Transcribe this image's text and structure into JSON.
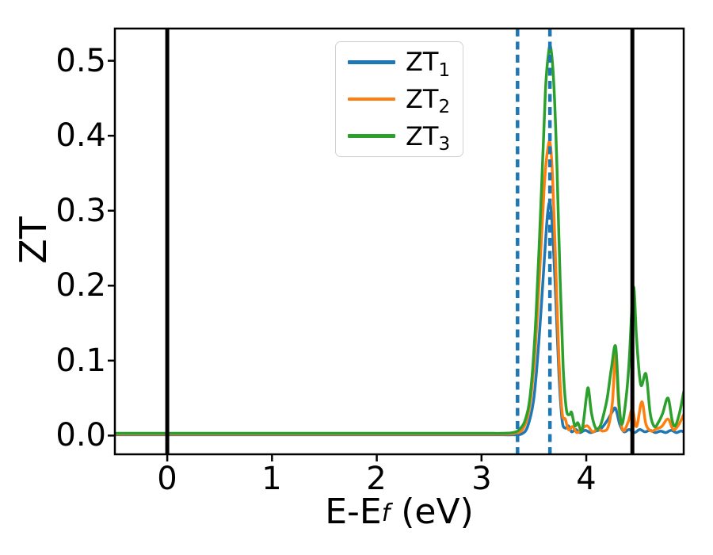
{
  "figure": {
    "background": "#ffffff"
  },
  "chart_data": {
    "type": "line",
    "title": "",
    "ylabel": "ZT",
    "xlabel": {
      "pre": "E-E",
      "sub": "f",
      "post": " (eV)"
    },
    "xlim": [
      -0.5,
      4.93
    ],
    "ylim": [
      -0.025,
      0.543
    ],
    "grid": false,
    "legend_position": "upper left-center",
    "xticks": {
      "values": [
        0,
        1,
        2,
        3,
        4
      ],
      "labels": [
        "0",
        "1",
        "2",
        "3",
        "4"
      ]
    },
    "yticks": {
      "values": [
        0.0,
        0.1,
        0.2,
        0.3,
        0.4,
        0.5
      ],
      "labels": [
        "0.0",
        "0.1",
        "0.2",
        "0.3",
        "0.4",
        "0.5"
      ]
    },
    "vlines": [
      {
        "x": 0.0,
        "color": "#000000",
        "style": "solid",
        "width": 5
      },
      {
        "x": 4.44,
        "color": "#000000",
        "style": "solid",
        "width": 5
      },
      {
        "x": 3.344,
        "color": "#1f77b4",
        "style": "dashed",
        "width": 4.5
      },
      {
        "x": 3.653,
        "color": "#1f77b4",
        "style": "dashed",
        "width": 4.5
      }
    ],
    "series": [
      {
        "name": "ZT1",
        "label_base": "ZT",
        "label_sub": "1",
        "color": "#1f77b4",
        "line_width": 3.5,
        "peak_summary": {
          "main_peak_x": 3.655,
          "main_peak_y": 0.31
        },
        "points": [
          [
            -0.5,
            0.001
          ],
          [
            0.5,
            0.001
          ],
          [
            1.5,
            0.001
          ],
          [
            2.5,
            0.001
          ],
          [
            3.0,
            0.001
          ],
          [
            3.2,
            0.001
          ],
          [
            3.3,
            0.001
          ],
          [
            3.38,
            0.002
          ],
          [
            3.44,
            0.012
          ],
          [
            3.5,
            0.05
          ],
          [
            3.55,
            0.13
          ],
          [
            3.6,
            0.235
          ],
          [
            3.63,
            0.295
          ],
          [
            3.655,
            0.31
          ],
          [
            3.68,
            0.27
          ],
          [
            3.71,
            0.18
          ],
          [
            3.74,
            0.08
          ],
          [
            3.77,
            0.02
          ],
          [
            3.8,
            0.01
          ],
          [
            3.83,
            0.013
          ],
          [
            3.86,
            0.005
          ],
          [
            3.9,
            0.008
          ],
          [
            3.94,
            0.004
          ],
          [
            3.99,
            0.007
          ],
          [
            4.04,
            0.004
          ],
          [
            4.09,
            0.006
          ],
          [
            4.14,
            0.009
          ],
          [
            4.2,
            0.02
          ],
          [
            4.25,
            0.032
          ],
          [
            4.28,
            0.036
          ],
          [
            4.32,
            0.015
          ],
          [
            4.36,
            0.005
          ],
          [
            4.41,
            0.008
          ],
          [
            4.46,
            0.004
          ],
          [
            4.51,
            0.008
          ],
          [
            4.56,
            0.005
          ],
          [
            4.61,
            0.007
          ],
          [
            4.66,
            0.004
          ],
          [
            4.71,
            0.006
          ],
          [
            4.76,
            0.004
          ],
          [
            4.81,
            0.007
          ],
          [
            4.86,
            0.004
          ],
          [
            4.9,
            0.006
          ],
          [
            4.93,
            0.005
          ]
        ]
      },
      {
        "name": "ZT2",
        "label_base": "ZT",
        "label_sub": "2",
        "color": "#ff7f0e",
        "line_width": 3.5,
        "peak_summary": {
          "main_peak_x": 3.655,
          "main_peak_y": 0.39
        },
        "points": [
          [
            -0.5,
            0.002
          ],
          [
            0.5,
            0.002
          ],
          [
            1.5,
            0.002
          ],
          [
            2.5,
            0.002
          ],
          [
            3.0,
            0.002
          ],
          [
            3.2,
            0.002
          ],
          [
            3.32,
            0.003
          ],
          [
            3.4,
            0.01
          ],
          [
            3.46,
            0.04
          ],
          [
            3.51,
            0.11
          ],
          [
            3.56,
            0.23
          ],
          [
            3.6,
            0.335
          ],
          [
            3.63,
            0.38
          ],
          [
            3.655,
            0.39
          ],
          [
            3.68,
            0.34
          ],
          [
            3.71,
            0.22
          ],
          [
            3.74,
            0.1
          ],
          [
            3.77,
            0.03
          ],
          [
            3.8,
            0.022
          ],
          [
            3.83,
            0.008
          ],
          [
            3.87,
            0.012
          ],
          [
            3.91,
            0.004
          ],
          [
            3.96,
            0.009
          ],
          [
            4.01,
            0.013
          ],
          [
            4.06,
            0.005
          ],
          [
            4.11,
            0.009
          ],
          [
            4.16,
            0.006
          ],
          [
            4.21,
            0.012
          ],
          [
            4.25,
            0.045
          ],
          [
            4.28,
            0.108
          ],
          [
            4.31,
            0.04
          ],
          [
            4.35,
            0.007
          ],
          [
            4.4,
            0.018
          ],
          [
            4.44,
            0.035
          ],
          [
            4.48,
            0.012
          ],
          [
            4.53,
            0.045
          ],
          [
            4.57,
            0.015
          ],
          [
            4.62,
            0.006
          ],
          [
            4.67,
            0.009
          ],
          [
            4.72,
            0.012
          ],
          [
            4.78,
            0.022
          ],
          [
            4.83,
            0.008
          ],
          [
            4.88,
            0.014
          ],
          [
            4.93,
            0.028
          ]
        ]
      },
      {
        "name": "ZT3",
        "label_base": "ZT",
        "label_sub": "3",
        "color": "#2ca02c",
        "line_width": 3.5,
        "peak_summary": {
          "main_peak_x": 3.66,
          "main_peak_y": 0.518
        },
        "points": [
          [
            -0.5,
            0.003
          ],
          [
            0.5,
            0.003
          ],
          [
            1.5,
            0.003
          ],
          [
            2.5,
            0.003
          ],
          [
            3.0,
            0.003
          ],
          [
            3.2,
            0.003
          ],
          [
            3.3,
            0.004
          ],
          [
            3.36,
            0.008
          ],
          [
            3.42,
            0.022
          ],
          [
            3.47,
            0.06
          ],
          [
            3.52,
            0.16
          ],
          [
            3.57,
            0.32
          ],
          [
            3.61,
            0.46
          ],
          [
            3.64,
            0.51
          ],
          [
            3.66,
            0.518
          ],
          [
            3.69,
            0.47
          ],
          [
            3.72,
            0.36
          ],
          [
            3.75,
            0.21
          ],
          [
            3.78,
            0.09
          ],
          [
            3.81,
            0.035
          ],
          [
            3.84,
            0.028
          ],
          [
            3.86,
            0.031
          ],
          [
            3.89,
            0.013
          ],
          [
            3.92,
            0.017
          ],
          [
            3.96,
            0.007
          ],
          [
            4.0,
            0.05
          ],
          [
            4.02,
            0.063
          ],
          [
            4.05,
            0.03
          ],
          [
            4.09,
            0.01
          ],
          [
            4.13,
            0.012
          ],
          [
            4.16,
            0.025
          ],
          [
            4.2,
            0.05
          ],
          [
            4.24,
            0.09
          ],
          [
            4.28,
            0.119
          ],
          [
            4.31,
            0.05
          ],
          [
            4.34,
            0.015
          ],
          [
            4.38,
            0.05
          ],
          [
            4.41,
            0.1
          ],
          [
            4.45,
            0.198
          ],
          [
            4.48,
            0.13
          ],
          [
            4.52,
            0.068
          ],
          [
            4.57,
            0.082
          ],
          [
            4.61,
            0.03
          ],
          [
            4.65,
            0.012
          ],
          [
            4.69,
            0.018
          ],
          [
            4.73,
            0.03
          ],
          [
            4.78,
            0.05
          ],
          [
            4.82,
            0.02
          ],
          [
            4.85,
            0.013
          ],
          [
            4.89,
            0.03
          ],
          [
            4.93,
            0.058
          ]
        ]
      }
    ]
  },
  "legend": {
    "items": [
      {
        "label_base": "ZT",
        "label_sub": "1",
        "color": "#1f77b4"
      },
      {
        "label_base": "ZT",
        "label_sub": "2",
        "color": "#ff7f0e"
      },
      {
        "label_base": "ZT",
        "label_sub": "3",
        "color": "#2ca02c"
      }
    ]
  }
}
